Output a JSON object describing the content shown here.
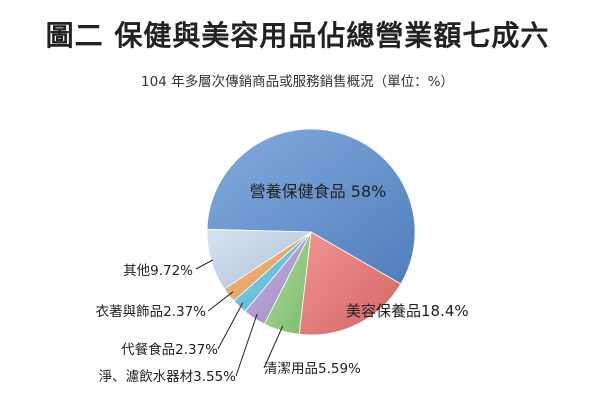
{
  "header": {
    "title": "圖二 保健與美容用品佔總營業額七成六",
    "subtitle": "104 年多層次傳銷商品或服務銷售概況（單位：%）"
  },
  "chart_data": {
    "type": "pie",
    "title": "圖二 保健與美容用品佔總營業額七成六",
    "subtitle": "104 年多層次傳銷商品或服務銷售概況（單位：%）",
    "slices": [
      {
        "label": "營養保健食品",
        "value": 58,
        "text": "營養保健食品 58%",
        "color": "#5b8fd4"
      },
      {
        "label": "美容保養品",
        "value": 18.4,
        "text": "美容保養品18.4%",
        "color": "#ee7372"
      },
      {
        "label": "清潔用品",
        "value": 5.59,
        "text": "清潔用品5.59%",
        "color": "#8fd37b"
      },
      {
        "label": "淨、濾飲水器材",
        "value": 3.55,
        "text": "淨、濾飲水器材3.55%",
        "color": "#b49ad8"
      },
      {
        "label": "代餐食品",
        "value": 2.37,
        "text": "代餐食品2.37%",
        "color": "#5cc7e8"
      },
      {
        "label": "衣著與飾品",
        "value": 2.37,
        "text": "衣著與飾品2.37%",
        "color": "#f5a860"
      },
      {
        "label": "其他",
        "value": 9.72,
        "text": "其他9.72%",
        "color": "#c8daf2"
      }
    ],
    "legend": "none"
  }
}
